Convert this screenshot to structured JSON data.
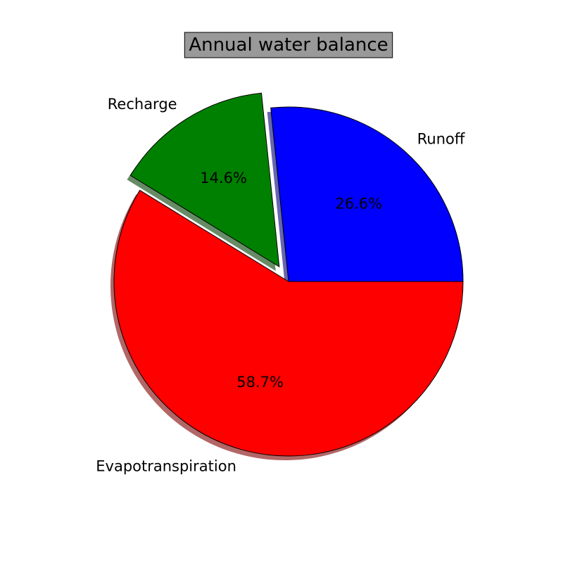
{
  "chart_data": {
    "type": "pie",
    "title": "Annual water balance",
    "slices": [
      {
        "label": "Runoff",
        "value": 26.6,
        "pct_label": "26.6%",
        "color": "#0000ff",
        "exploded": false
      },
      {
        "label": "Recharge",
        "value": 14.6,
        "pct_label": "14.6%",
        "color": "#008000",
        "exploded": true
      },
      {
        "label": "Evapotranspiration",
        "value": 58.7,
        "pct_label": "58.7%",
        "color": "#ff0000",
        "exploded": false
      }
    ],
    "start_angle_deg": 0,
    "direction": "counterclockwise",
    "shadow": true,
    "legend": "none"
  }
}
